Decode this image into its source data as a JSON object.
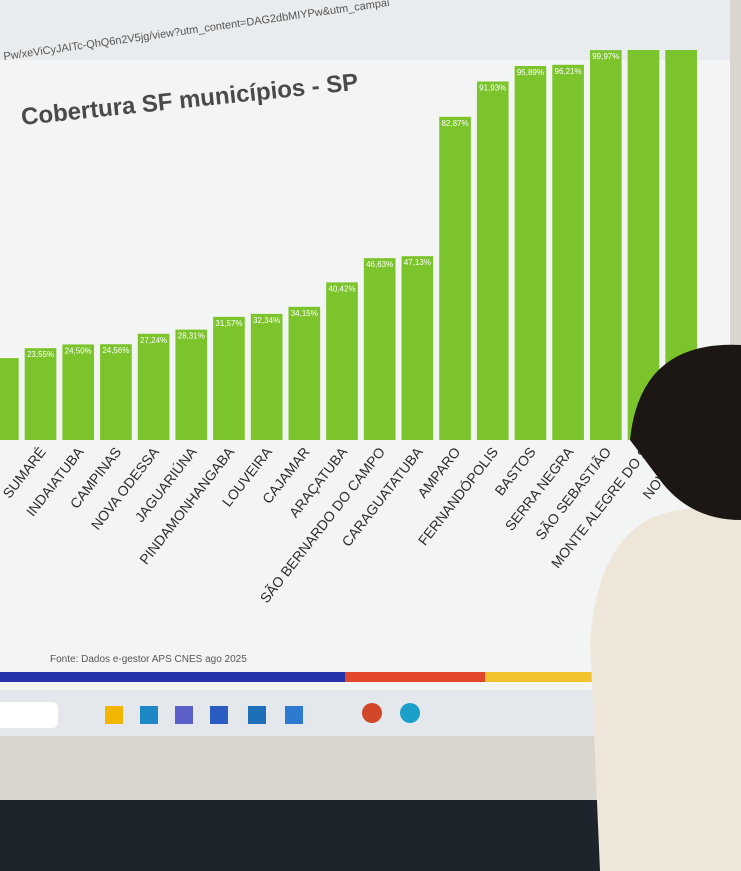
{
  "chart_data": {
    "type": "bar",
    "url": "Pw/xeViCyJAITc-QhQ6n2V5jg/view?utm_content=DAG2dbMIYPw&utm_campai",
    "title": "Cobertura SF municípios - SP",
    "source": "Fonte: Dados e-gestor APS CNES ago 2025",
    "categories": [
      null,
      "SUMARÉ",
      "INDAIATUBA",
      "CAMPINAS",
      "NOVA ODESSA",
      "JAGUARIÚNA",
      "PINDAMONHANGABA",
      "LOUVEIRA",
      "CAJAMAR",
      "ARAÇATUBA",
      "SÃO BERNARDO DO CAMPO",
      "CARAGUATATUBA",
      "AMPARO",
      "FERNANDÓPOLIS",
      "BASTOS",
      "SERRA NEGRA",
      "SÃO SEBASTIÃO",
      "MONTE ALEGRE DO S",
      "NOVA CA"
    ],
    "values": [
      21,
      23.55,
      24.5,
      24.56,
      27.24,
      28.31,
      31.57,
      32.34,
      34.15,
      40.42,
      46.63,
      47.13,
      82.87,
      91.93,
      95.89,
      96.21,
      99.97,
      100,
      100
    ],
    "value_labels": [
      null,
      "23,55%",
      "24,50%",
      "24,56%",
      "27,24%",
      "28,31%",
      "31,57%",
      "32,34%",
      "34,15%",
      "40,42%",
      "46,63%",
      "47,13%",
      "82,87%",
      "91,93%",
      "95,89%",
      "96,21%",
      "99,97%",
      null,
      null
    ],
    "color": "#7cc42c",
    "ylim": [
      0,
      100
    ]
  }
}
